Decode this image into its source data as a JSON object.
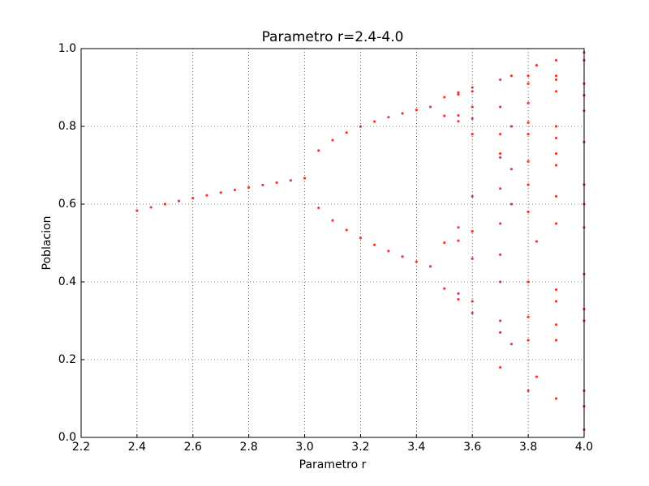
{
  "chart_data": {
    "type": "scatter",
    "title": "Parametro r=2.4-4.0",
    "x_label": "Parametro r",
    "y_label": "Poblacion",
    "color": "#ff0000",
    "grid": true,
    "xlim": [
      2.2,
      4.0
    ],
    "ylim": [
      0.0,
      1.0
    ],
    "xticks": [
      2.2,
      2.4,
      2.6,
      2.8,
      {
        "value": 3.0,
        "label": "3.0"
      },
      3.2,
      3.4,
      3.6,
      3.8,
      {
        "value": 4.0,
        "label": "4.0"
      }
    ],
    "yticks": [
      {
        "value": 0.0,
        "label": "0.0"
      },
      0.2,
      0.4,
      0.6,
      0.8,
      {
        "value": 1.0,
        "label": "1.0"
      }
    ],
    "x": [
      2.4,
      2.45,
      2.5,
      2.55,
      2.6,
      2.65,
      2.7,
      2.75,
      2.8,
      2.85,
      2.9,
      2.95,
      3.0,
      3.05,
      3.05,
      3.1,
      3.1,
      3.15,
      3.15,
      3.2,
      3.2,
      3.25,
      3.25,
      3.3,
      3.3,
      3.35,
      3.35,
      3.4,
      3.4,
      3.45,
      3.45,
      3.5,
      3.5,
      3.5,
      3.5,
      3.55,
      3.55,
      3.55,
      3.55,
      3.55,
      3.55,
      3.55,
      3.55,
      3.6,
      3.6,
      3.6,
      3.6,
      3.6,
      3.6,
      3.6,
      3.6,
      3.6,
      3.6,
      3.7,
      3.7,
      3.7,
      3.7,
      3.7,
      3.7,
      3.7,
      3.7,
      3.7,
      3.7,
      3.7,
      3.7,
      3.74,
      3.74,
      3.74,
      3.74,
      3.74,
      3.8,
      3.8,
      3.8,
      3.8,
      3.8,
      3.8,
      3.8,
      3.8,
      3.8,
      3.8,
      3.8,
      3.8,
      3.83,
      3.83,
      3.83,
      3.9,
      3.9,
      3.9,
      3.9,
      3.9,
      3.9,
      3.9,
      3.9,
      3.9,
      3.9,
      3.9,
      3.9,
      3.9,
      3.9,
      3.9,
      4.0,
      4.0,
      4.0,
      4.0,
      4.0,
      4.0,
      4.0,
      4.0,
      4.0,
      4.0,
      4.0,
      4.0,
      4.0,
      4.0,
      4.0
    ],
    "values": [
      0.5833,
      0.5918,
      0.6,
      0.6078,
      0.6154,
      0.6226,
      0.6296,
      0.6364,
      0.6429,
      0.6491,
      0.6552,
      0.661,
      0.6667,
      0.7377,
      0.5902,
      0.7646,
      0.558,
      0.784,
      0.5335,
      0.7995,
      0.513,
      0.8124,
      0.4953,
      0.8236,
      0.4794,
      0.8334,
      0.4651,
      0.8422,
      0.452,
      0.85,
      0.4398,
      0.875,
      0.3828,
      0.8269,
      0.5009,
      0.887,
      0.355,
      0.813,
      0.54,
      0.882,
      0.37,
      0.828,
      0.506,
      0.32,
      0.78,
      0.62,
      0.85,
      0.46,
      0.89,
      0.35,
      0.82,
      0.53,
      0.9,
      0.18,
      0.55,
      0.92,
      0.27,
      0.73,
      0.72,
      0.3,
      0.78,
      0.64,
      0.85,
      0.47,
      0.4,
      0.93,
      0.24,
      0.69,
      0.8,
      0.6,
      0.12,
      0.4,
      0.91,
      0.31,
      0.81,
      0.58,
      0.93,
      0.25,
      0.71,
      0.78,
      0.65,
      0.86,
      0.156,
      0.504,
      0.957,
      0.1,
      0.35,
      0.89,
      0.38,
      0.92,
      0.29,
      0.8,
      0.62,
      0.93,
      0.25,
      0.73,
      0.77,
      0.7,
      0.55,
      0.97,
      0.02,
      0.08,
      0.3,
      0.84,
      0.54,
      0.99,
      0.65,
      0.91,
      0.33,
      0.88,
      0.42,
      0.97,
      0.12,
      0.6,
      0.76
    ]
  }
}
